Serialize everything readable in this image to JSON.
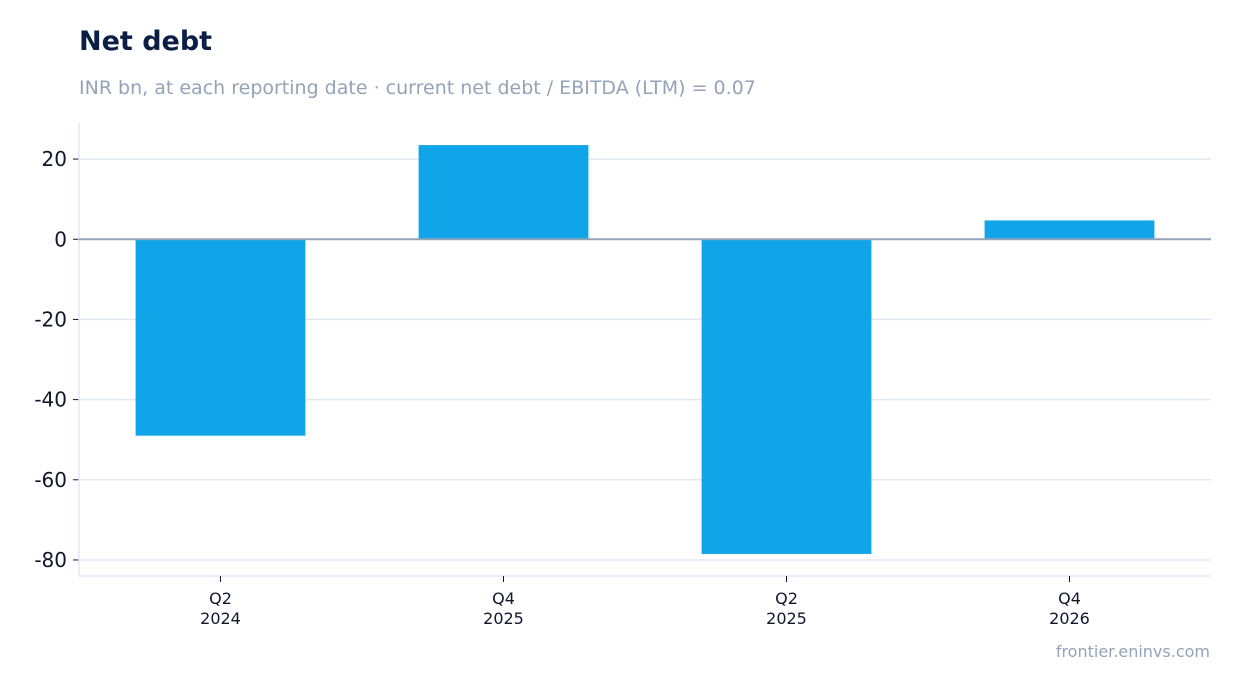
{
  "title": "Net debt",
  "subtitle": "INR bn, at each reporting date · current net debt / EBITDA (LTM) = 0.07",
  "footer": "frontier.eninvs.com",
  "colors": {
    "bar": "#10a5e8",
    "grid": "#e2e8f0",
    "zero_line": "#94a3b8",
    "title": "#0b1f44",
    "muted": "#94a3b8"
  },
  "chart_data": {
    "type": "bar",
    "categories": [
      [
        "Q2",
        "2024"
      ],
      [
        "Q4",
        "2025"
      ],
      [
        "Q2",
        "2025"
      ],
      [
        "Q4",
        "2026"
      ]
    ],
    "values": [
      -49,
      23.5,
      -78.5,
      4.7
    ],
    "y_ticks": [
      20,
      0,
      -20,
      -40,
      -60,
      -80
    ],
    "y_tick_labels": [
      "20",
      "0",
      "-20",
      "-40",
      "-60",
      "-80"
    ],
    "ylim": [
      -84,
      29
    ],
    "grid": true,
    "legend": "none",
    "xlabel": "",
    "ylabel": ""
  }
}
